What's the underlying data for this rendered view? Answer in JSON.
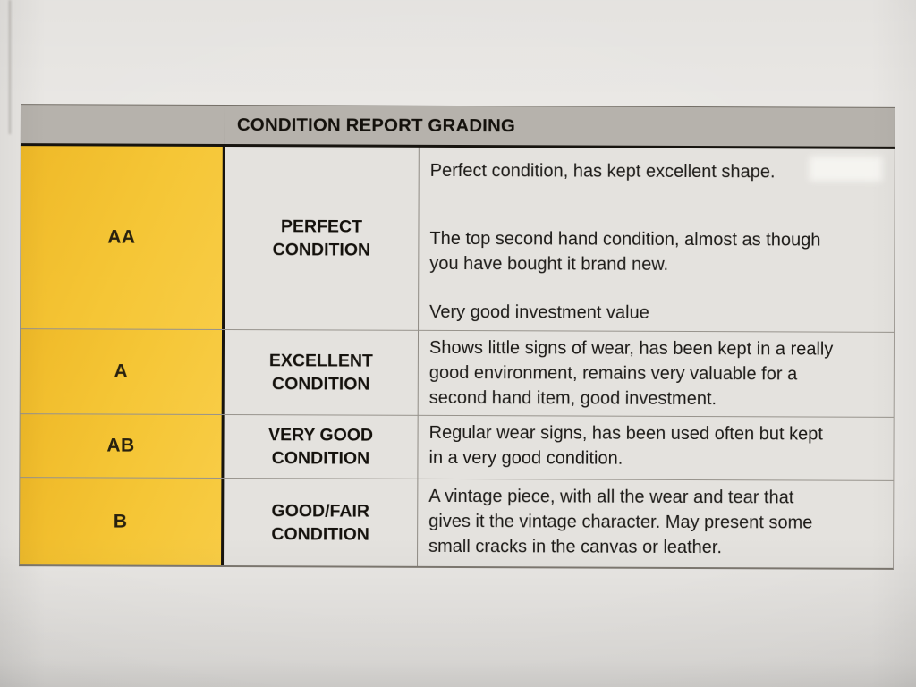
{
  "table": {
    "header": "CONDITION REPORT GRADING",
    "rows": [
      {
        "grade": "AA",
        "condition_lines": [
          "PERFECT",
          "CONDITION"
        ],
        "paragraphs": [
          [
            "Perfect condition, has kept excellent shape."
          ],
          [
            "The top second hand condition, almost as though",
            "you have bought it brand new."
          ],
          [
            "Very good investment value"
          ]
        ]
      },
      {
        "grade": "A",
        "condition_lines": [
          "EXCELLENT",
          "CONDITION"
        ],
        "paragraphs": [
          [
            "Shows little signs of wear, has been kept in a really",
            "good environment, remains very valuable for a",
            "second hand item, good investment."
          ]
        ]
      },
      {
        "grade": "AB",
        "condition_lines": [
          "VERY GOOD",
          "CONDITION"
        ],
        "paragraphs": [
          [
            "Regular wear signs, has been used often but kept",
            "in a very good condition."
          ]
        ]
      },
      {
        "grade": "B",
        "condition_lines": [
          "GOOD/FAIR",
          "CONDITION"
        ],
        "paragraphs": [
          [
            "A vintage piece, with all the wear and tear that",
            "gives it the vintage character. May present some",
            "small cracks in the canvas or leather."
          ]
        ]
      }
    ]
  },
  "colors": {
    "paper": "#e9e7e4",
    "header_gray": "#b6b2ac",
    "cell_gray": "#e4e2de",
    "grade_yellow": "#f5c636",
    "grade_yellow_deep": "#efb928",
    "border_dark": "#17140f",
    "border_light": "#97938c",
    "text_dark": "#1a1813"
  }
}
